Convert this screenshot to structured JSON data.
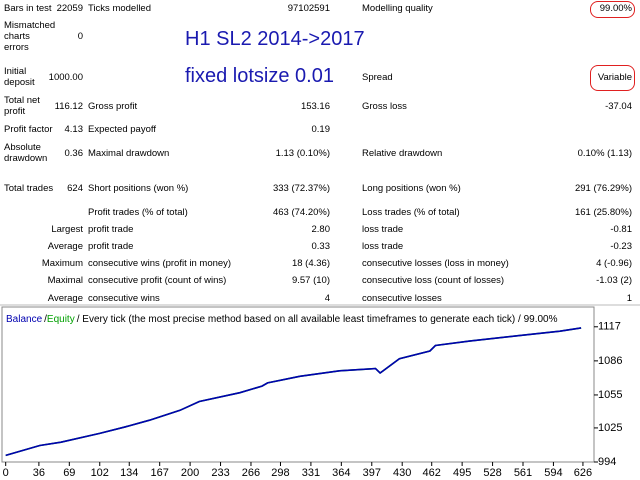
{
  "report": {
    "rows": [
      [
        "Bars in test",
        "22059",
        "Ticks modelled",
        "97102591",
        "Modelling quality",
        "99.00%"
      ],
      [
        "Mismatched charts errors",
        "0",
        null,
        null,
        null,
        null
      ],
      [
        "Initial deposit",
        "1000.00",
        null,
        null,
        "Spread",
        "Variable"
      ],
      [
        "Total net profit",
        "116.12",
        "Gross profit",
        "153.16",
        "Gross loss",
        "-37.04"
      ],
      [
        "Profit factor",
        "4.13",
        "Expected payoff",
        "0.19",
        null,
        null
      ],
      [
        "Absolute drawdown",
        "0.36",
        "Maximal drawdown",
        "1.13 (0.10%)",
        "Relative drawdown",
        "0.10% (1.13)"
      ],
      [
        "Total trades",
        "624",
        "Short positions (won %)",
        "333 (72.37%)",
        "Long positions (won %)",
        "291 (76.29%)"
      ],
      [
        null,
        null,
        "Profit trades (% of total)",
        "463 (74.20%)",
        "Loss trades (% of total)",
        "161 (25.80%)"
      ],
      [
        "Largest",
        null,
        "profit trade",
        "2.80",
        "loss trade",
        "-0.81"
      ],
      [
        "Average",
        null,
        "profit trade",
        "0.33",
        "loss trade",
        "-0.23"
      ],
      [
        "Maximum",
        null,
        "consecutive wins (profit in money)",
        "18 (4.36)",
        "consecutive losses (loss in money)",
        "4 (-0.96)"
      ],
      [
        "Maximal",
        null,
        "consecutive profit (count of wins)",
        "9.57 (10)",
        "consecutive loss (count of losses)",
        "-1.03 (2)"
      ],
      [
        "Average",
        null,
        "consecutive wins",
        "4",
        "consecutive losses",
        "1"
      ]
    ]
  },
  "annotations": [
    "H1 SL2 2014->2017",
    "fixed lotsize 0.01"
  ],
  "chart_data": {
    "type": "line",
    "separator": "/",
    "caption": "/ Every tick (the most precise method based on all available least timeframes to generate each tick) / 99.00%",
    "x": [
      0,
      37,
      60,
      102,
      130,
      156,
      189,
      210,
      254,
      278,
      284,
      319,
      362,
      401,
      406,
      427,
      460,
      466,
      503,
      557,
      601,
      624
    ],
    "series": [
      {
        "name": "Equity",
        "color": "#00a000",
        "values": [
          1000,
          1009,
          1012,
          1020,
          1026,
          1032,
          1041,
          1049,
          1057,
          1063,
          1066,
          1072,
          1077,
          1079,
          1075,
          1088,
          1095,
          1100,
          1104,
          1109,
          1113,
          1116
        ]
      },
      {
        "name": "Balance",
        "color": "#0000b0",
        "values": [
          1000,
          1009,
          1012,
          1020,
          1026,
          1032,
          1041,
          1049,
          1057,
          1063,
          1066,
          1072,
          1077,
          1079,
          1075,
          1088,
          1095,
          1100,
          1104,
          1109,
          1113,
          1116
        ]
      }
    ],
    "xlim": [
      -4,
      638
    ],
    "xticks": [
      0,
      36,
      69,
      102,
      134,
      167,
      200,
      233,
      266,
      298,
      331,
      364,
      397,
      430,
      462,
      495,
      528,
      561,
      594,
      626
    ],
    "ylim": [
      994,
      1135
    ],
    "yticks": [
      994,
      1025,
      1055,
      1086,
      1117
    ]
  }
}
